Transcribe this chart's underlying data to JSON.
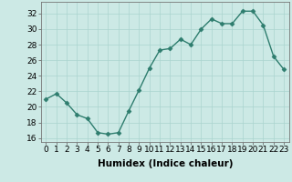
{
  "x": [
    0,
    1,
    2,
    3,
    4,
    5,
    6,
    7,
    8,
    9,
    10,
    11,
    12,
    13,
    14,
    15,
    16,
    17,
    18,
    19,
    20,
    21,
    22,
    23
  ],
  "y": [
    21,
    21.7,
    20.5,
    19,
    18.5,
    16.7,
    16.5,
    16.7,
    19.5,
    22.2,
    25.0,
    27.3,
    27.5,
    28.7,
    28.0,
    30.0,
    31.3,
    30.7,
    30.7,
    32.3,
    32.3,
    30.5,
    26.5,
    24.8
  ],
  "line_color": "#2e7d6e",
  "marker": "D",
  "marker_size": 2.5,
  "bg_color": "#cce9e5",
  "grid_color": "#aad4cf",
  "xlabel": "Humidex (Indice chaleur)",
  "xlim": [
    -0.5,
    23.5
  ],
  "ylim": [
    15.5,
    33.5
  ],
  "yticks": [
    16,
    18,
    20,
    22,
    24,
    26,
    28,
    30,
    32
  ],
  "xticks": [
    0,
    1,
    2,
    3,
    4,
    5,
    6,
    7,
    8,
    9,
    10,
    11,
    12,
    13,
    14,
    15,
    16,
    17,
    18,
    19,
    20,
    21,
    22,
    23
  ],
  "xlabel_fontsize": 7.5,
  "tick_fontsize": 6.5,
  "line_width": 1.0
}
